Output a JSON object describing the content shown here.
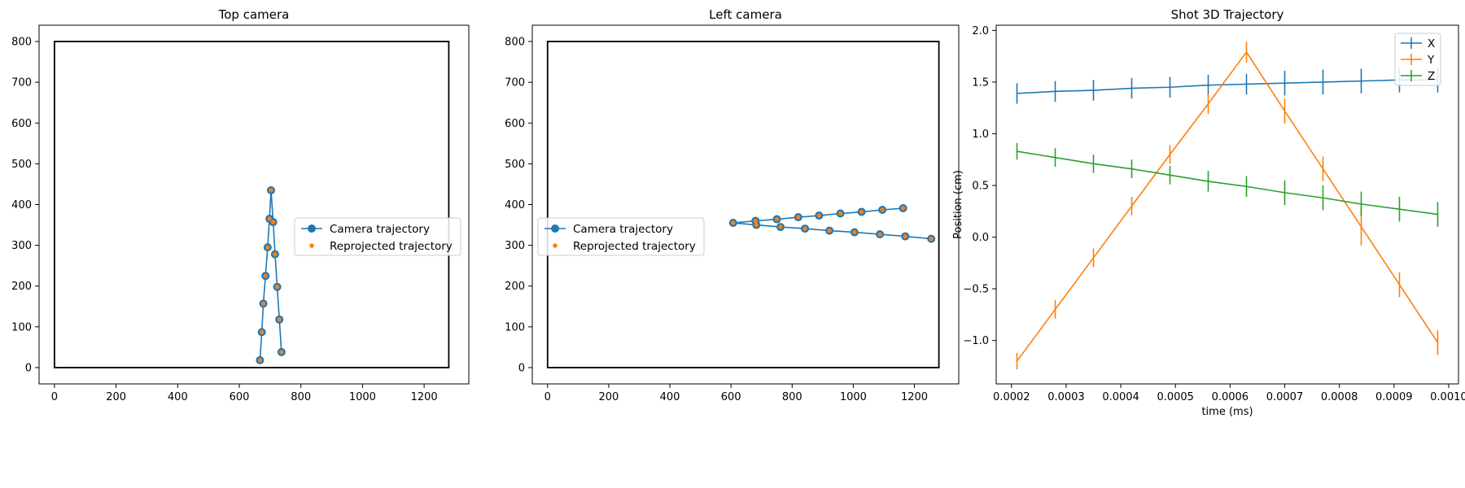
{
  "chart_data": [
    {
      "type": "line",
      "title": "Top camera",
      "xlabel": "",
      "ylabel": "",
      "xlim": [
        -50,
        1345
      ],
      "ylim": [
        -40,
        840
      ],
      "xticks": [
        0,
        200,
        400,
        600,
        800,
        1000,
        1200
      ],
      "yticks": [
        0,
        100,
        200,
        300,
        400,
        500,
        600,
        700,
        800
      ],
      "frame": [
        [
          0,
          0
        ],
        [
          1280,
          800
        ]
      ],
      "legend": {
        "placement": "center-right",
        "entries": [
          "Camera trajectory",
          "Reprojected trajectory"
        ]
      },
      "series": [
        {
          "name": "Camera trajectory",
          "style": "line-marker",
          "color": "#1f77b4",
          "points": [
            [
              667,
              18
            ],
            [
              673,
              87
            ],
            [
              678,
              157
            ],
            [
              685,
              225
            ],
            [
              692,
              295
            ],
            [
              698,
              365
            ],
            [
              703,
              435
            ],
            [
              710,
              357
            ],
            [
              716,
              278
            ],
            [
              723,
              198
            ],
            [
              730,
              118
            ],
            [
              737,
              38
            ]
          ]
        },
        {
          "name": "Reprojected trajectory",
          "style": "marker",
          "color": "#ff7f0e",
          "points": [
            [
              667,
              18
            ],
            [
              673,
              87
            ],
            [
              678,
              157
            ],
            [
              685,
              225
            ],
            [
              692,
              295
            ],
            [
              698,
              365
            ],
            [
              703,
              435
            ],
            [
              710,
              357
            ],
            [
              716,
              278
            ],
            [
              723,
              198
            ],
            [
              730,
              118
            ],
            [
              737,
              38
            ]
          ]
        }
      ]
    },
    {
      "type": "line",
      "title": "Left camera",
      "xlabel": "",
      "ylabel": "",
      "xlim": [
        -50,
        1345
      ],
      "ylim": [
        -40,
        840
      ],
      "xticks": [
        0,
        200,
        400,
        600,
        800,
        1000,
        1200
      ],
      "yticks": [
        0,
        100,
        200,
        300,
        400,
        500,
        600,
        700,
        800
      ],
      "frame": [
        [
          0,
          0
        ],
        [
          1280,
          800
        ]
      ],
      "legend": {
        "placement": "center-left",
        "entries": [
          "Camera trajectory",
          "Reprojected trajectory"
        ]
      },
      "series": [
        {
          "name": "Camera trajectory",
          "style": "line-marker",
          "color": "#1f77b4",
          "points": [
            [
              1163,
              391
            ],
            [
              1095,
              387
            ],
            [
              1027,
              382
            ],
            [
              958,
              378
            ],
            [
              888,
              373
            ],
            [
              820,
              369
            ],
            [
              750,
              364
            ],
            [
              680,
              360
            ],
            [
              607,
              355
            ],
            [
              683,
              350
            ],
            [
              762,
              345
            ],
            [
              842,
              341
            ],
            [
              922,
              336
            ],
            [
              1004,
              332
            ],
            [
              1087,
              327
            ],
            [
              1170,
              322
            ],
            [
              1255,
              316
            ]
          ]
        },
        {
          "name": "Reprojected trajectory",
          "style": "marker",
          "color": "#ff7f0e",
          "points": [
            [
              1163,
              391
            ],
            [
              1095,
              387
            ],
            [
              1027,
              382
            ],
            [
              958,
              378
            ],
            [
              888,
              373
            ],
            [
              820,
              369
            ],
            [
              750,
              364
            ],
            [
              680,
              360
            ],
            [
              607,
              355
            ],
            [
              683,
              350
            ],
            [
              762,
              345
            ],
            [
              842,
              341
            ],
            [
              922,
              336
            ],
            [
              1004,
              332
            ],
            [
              1087,
              327
            ],
            [
              1170,
              322
            ],
            [
              1255,
              316
            ]
          ]
        }
      ]
    },
    {
      "type": "line",
      "title": "Shot 3D Trajectory",
      "xlabel": "time (ms)",
      "ylabel": "Position (cm)",
      "xlim": [
        0.000172,
        0.001018
      ],
      "ylim": [
        -1.42,
        2.05
      ],
      "xticks": [
        "0.0002",
        "0.0003",
        "0.0004",
        "0.0005",
        "0.0006",
        "0.0007",
        "0.0008",
        "0.0009",
        "0.0010"
      ],
      "yticks": [
        "−1.0",
        "−0.5",
        "0.0",
        "0.5",
        "1.0",
        "1.5",
        "2.0"
      ],
      "legend": {
        "placement": "top-right",
        "entries": [
          "X",
          "Y",
          "Z"
        ]
      },
      "x": [
        0.00021,
        0.00028,
        0.00035,
        0.00042,
        0.00049,
        0.00056,
        0.00063,
        0.0007,
        0.00077,
        0.00084,
        0.00091,
        0.00098
      ],
      "series": [
        {
          "name": "X",
          "color": "#1f77b4",
          "values": [
            1.39,
            1.41,
            1.42,
            1.44,
            1.45,
            1.47,
            1.48,
            1.49,
            1.5,
            1.51,
            1.52,
            1.52
          ],
          "error": [
            0.1,
            0.1,
            0.1,
            0.1,
            0.1,
            0.1,
            0.1,
            0.12,
            0.12,
            0.12,
            0.12,
            0.12
          ]
        },
        {
          "name": "Y",
          "color": "#ff7f0e",
          "values": [
            -1.2,
            -0.7,
            -0.2,
            0.3,
            0.8,
            1.29,
            1.79,
            1.22,
            0.66,
            0.1,
            -0.46,
            -1.02
          ],
          "error": [
            0.08,
            0.09,
            0.09,
            0.09,
            0.09,
            0.1,
            0.1,
            0.12,
            0.12,
            0.18,
            0.12,
            0.12
          ]
        },
        {
          "name": "Z",
          "color": "#2ca02c",
          "values": [
            0.83,
            0.77,
            0.71,
            0.66,
            0.6,
            0.54,
            0.49,
            0.43,
            0.38,
            0.32,
            0.27,
            0.22
          ],
          "error": [
            0.08,
            0.09,
            0.09,
            0.09,
            0.09,
            0.1,
            0.1,
            0.12,
            0.12,
            0.12,
            0.12,
            0.12
          ]
        }
      ]
    }
  ]
}
